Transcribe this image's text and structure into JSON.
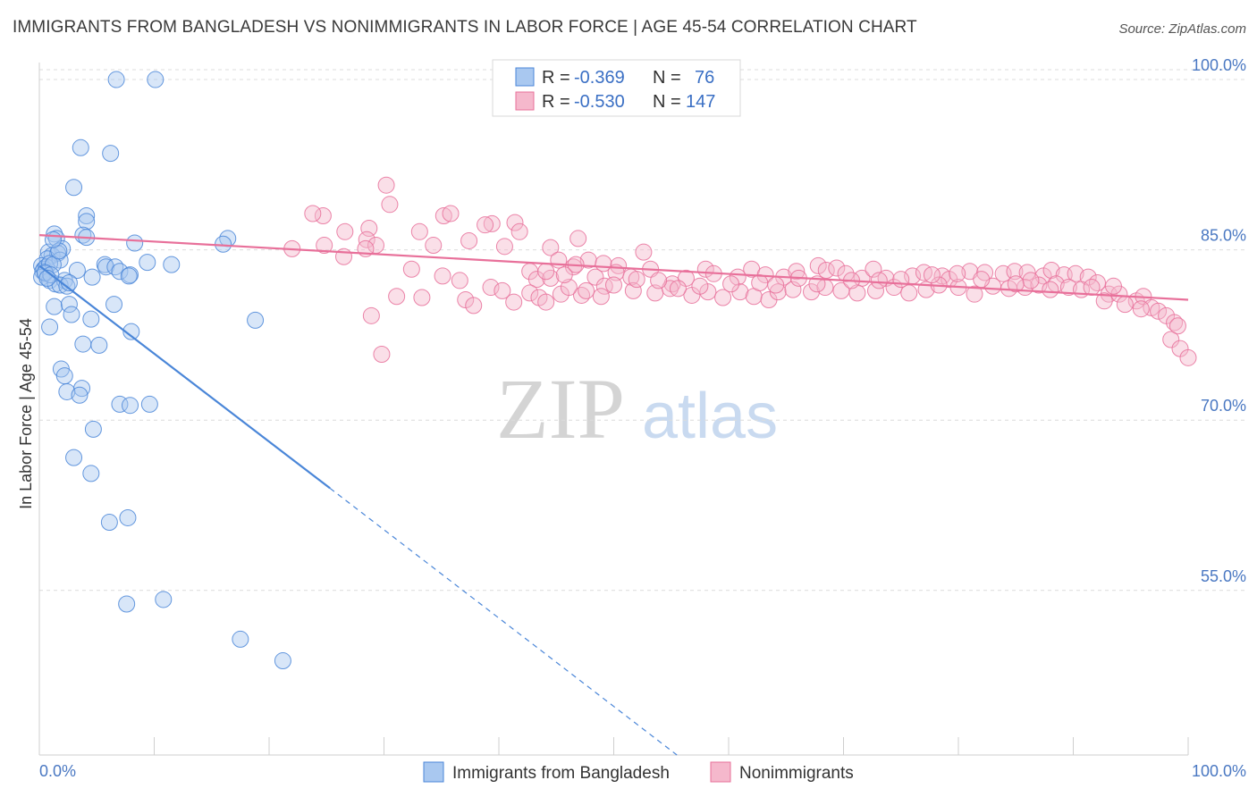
{
  "title": "IMMIGRANTS FROM BANGLADESH VS NONIMMIGRANTS IN LABOR FORCE | AGE 45-54 CORRELATION CHART",
  "source": "Source: ZipAtlas.com",
  "watermark": {
    "zip": "ZIP",
    "atlas": "atlas"
  },
  "colors": {
    "blue": "#4a86d8",
    "blue_fill": "#a9c8f0",
    "pink": "#e8709a",
    "pink_fill": "#f5b8cc",
    "axis_text": "#4a78c2"
  },
  "legend": {
    "rows": [
      {
        "r_label": "R =",
        "r_value": "-0.369",
        "n_label": "N =",
        "n_value": "76",
        "color": "blue"
      },
      {
        "r_label": "R =",
        "r_value": "-0.530",
        "n_label": "N =",
        "n_value": "147",
        "color": "pink"
      }
    ]
  },
  "bottom_legend": [
    {
      "label": "Immigrants from Bangladesh",
      "color": "blue"
    },
    {
      "label": "Nonimmigrants",
      "color": "pink"
    }
  ],
  "chart_data": {
    "type": "scatter",
    "title": "IMMIGRANTS FROM BANGLADESH VS NONIMMIGRANTS IN LABOR FORCE | AGE 45-54 CORRELATION CHART",
    "xlabel": "",
    "ylabel": "In Labor Force | Age 45-54",
    "xlim": [
      0,
      100
    ],
    "ylim": [
      40.5,
      101.5
    ],
    "x_tick_labels": [
      "0.0%",
      "100.0%"
    ],
    "y_ticks": [
      55,
      70,
      85,
      100
    ],
    "y_tick_labels": [
      "55.0%",
      "70.0%",
      "85.0%",
      "100.0%"
    ],
    "grid": true,
    "series": [
      {
        "name": "Immigrants from Bangladesh",
        "color": "blue",
        "trend": {
          "x0": 0,
          "y0": 83.6,
          "x1": 25.3,
          "y1": 64.0,
          "dash_to_x": 55.5,
          "dash_to_y": 40.5
        },
        "points": [
          [
            6.7,
            100.0
          ],
          [
            10.1,
            100.0
          ],
          [
            3.6,
            94.0
          ],
          [
            6.2,
            93.5
          ],
          [
            3.0,
            90.5
          ],
          [
            4.1,
            88.0
          ],
          [
            4.1,
            87.5
          ],
          [
            1.3,
            86.4
          ],
          [
            3.8,
            86.3
          ],
          [
            4.1,
            86.1
          ],
          [
            1.5,
            86.0
          ],
          [
            8.3,
            85.6
          ],
          [
            16.4,
            86.0
          ],
          [
            16.0,
            85.5
          ],
          [
            0.8,
            84.8
          ],
          [
            2.0,
            85.1
          ],
          [
            1.1,
            84.5
          ],
          [
            1.6,
            84.7
          ],
          [
            0.7,
            84.2
          ],
          [
            1.8,
            84.1
          ],
          [
            0.2,
            83.6
          ],
          [
            0.4,
            83.3
          ],
          [
            0.3,
            83.1
          ],
          [
            0.6,
            83.5
          ],
          [
            0.9,
            83.8
          ],
          [
            1.2,
            83.7
          ],
          [
            0.5,
            82.9
          ],
          [
            0.2,
            82.6
          ],
          [
            0.9,
            82.3
          ],
          [
            1.4,
            82.0
          ],
          [
            2.2,
            82.3
          ],
          [
            3.3,
            83.2
          ],
          [
            5.7,
            83.7
          ],
          [
            5.8,
            83.5
          ],
          [
            6.6,
            83.5
          ],
          [
            7.0,
            83.1
          ],
          [
            7.9,
            82.8
          ],
          [
            7.8,
            82.7
          ],
          [
            9.4,
            83.9
          ],
          [
            11.5,
            83.7
          ],
          [
            4.6,
            82.6
          ],
          [
            1.8,
            81.9
          ],
          [
            2.4,
            81.8
          ],
          [
            1.3,
            80.0
          ],
          [
            2.6,
            80.2
          ],
          [
            6.5,
            80.2
          ],
          [
            2.8,
            79.3
          ],
          [
            4.5,
            78.9
          ],
          [
            18.8,
            78.8
          ],
          [
            0.9,
            78.2
          ],
          [
            8.0,
            77.8
          ],
          [
            3.8,
            76.7
          ],
          [
            5.2,
            76.6
          ],
          [
            1.9,
            74.5
          ],
          [
            2.2,
            73.9
          ],
          [
            3.7,
            72.8
          ],
          [
            2.4,
            72.5
          ],
          [
            3.5,
            72.2
          ],
          [
            7.0,
            71.4
          ],
          [
            7.9,
            71.3
          ],
          [
            9.6,
            71.4
          ],
          [
            4.7,
            69.2
          ],
          [
            3.0,
            66.7
          ],
          [
            4.5,
            65.3
          ],
          [
            6.1,
            61.0
          ],
          [
            7.7,
            61.4
          ],
          [
            7.6,
            53.8
          ],
          [
            10.8,
            54.2
          ],
          [
            17.5,
            50.7
          ],
          [
            21.2,
            48.8
          ],
          [
            0.5,
            83.0
          ],
          [
            1.0,
            82.8
          ],
          [
            0.7,
            82.5
          ],
          [
            2.6,
            82.1
          ],
          [
            1.7,
            84.9
          ],
          [
            1.2,
            85.9
          ]
        ]
      },
      {
        "name": "Nonimmigrants",
        "color": "pink",
        "trend": {
          "x0": 0,
          "y0": 86.3,
          "x1": 100,
          "y1": 80.6
        },
        "points": [
          [
            30.2,
            90.7
          ],
          [
            30.5,
            89.0
          ],
          [
            24.7,
            88.0
          ],
          [
            23.8,
            88.2
          ],
          [
            35.2,
            88.0
          ],
          [
            35.8,
            88.2
          ],
          [
            39.4,
            87.3
          ],
          [
            38.8,
            87.2
          ],
          [
            41.4,
            87.4
          ],
          [
            26.6,
            86.6
          ],
          [
            28.7,
            86.9
          ],
          [
            33.1,
            86.6
          ],
          [
            37.4,
            85.8
          ],
          [
            41.8,
            86.6
          ],
          [
            46.9,
            86.0
          ],
          [
            22.0,
            85.1
          ],
          [
            24.8,
            85.4
          ],
          [
            28.5,
            85.9
          ],
          [
            29.3,
            85.4
          ],
          [
            34.3,
            85.4
          ],
          [
            40.5,
            85.3
          ],
          [
            44.5,
            85.2
          ],
          [
            52.6,
            84.8
          ],
          [
            47.8,
            84.1
          ],
          [
            50.4,
            83.6
          ],
          [
            49.1,
            83.8
          ],
          [
            45.2,
            84.1
          ],
          [
            46.5,
            83.5
          ],
          [
            26.5,
            84.4
          ],
          [
            28.4,
            85.1
          ],
          [
            42.7,
            83.1
          ],
          [
            32.4,
            83.3
          ],
          [
            35.1,
            82.7
          ],
          [
            43.3,
            82.4
          ],
          [
            44.5,
            82.5
          ],
          [
            48.4,
            82.6
          ],
          [
            50.2,
            83.0
          ],
          [
            51.5,
            82.6
          ],
          [
            53.2,
            83.3
          ],
          [
            55.1,
            82.0
          ],
          [
            56.3,
            82.5
          ],
          [
            58.0,
            83.3
          ],
          [
            58.7,
            82.9
          ],
          [
            60.8,
            82.6
          ],
          [
            62.0,
            83.3
          ],
          [
            63.2,
            82.8
          ],
          [
            64.8,
            82.6
          ],
          [
            65.9,
            83.1
          ],
          [
            67.8,
            83.6
          ],
          [
            68.5,
            83.2
          ],
          [
            69.4,
            83.4
          ],
          [
            70.2,
            82.9
          ],
          [
            71.6,
            82.5
          ],
          [
            72.6,
            83.3
          ],
          [
            73.7,
            82.5
          ],
          [
            76.0,
            82.7
          ],
          [
            77.0,
            83.0
          ],
          [
            78.6,
            82.7
          ],
          [
            79.2,
            82.4
          ],
          [
            81.0,
            83.1
          ],
          [
            82.3,
            83.0
          ],
          [
            83.9,
            82.9
          ],
          [
            84.9,
            83.1
          ],
          [
            86.0,
            83.0
          ],
          [
            87.4,
            82.7
          ],
          [
            88.1,
            83.2
          ],
          [
            89.2,
            82.8
          ],
          [
            90.2,
            82.9
          ],
          [
            91.3,
            82.6
          ],
          [
            92.1,
            82.1
          ],
          [
            39.3,
            81.7
          ],
          [
            42.7,
            81.2
          ],
          [
            43.5,
            80.8
          ],
          [
            45.4,
            81.1
          ],
          [
            47.2,
            81.0
          ],
          [
            49.2,
            81.8
          ],
          [
            50.0,
            81.9
          ],
          [
            51.7,
            81.4
          ],
          [
            53.6,
            81.2
          ],
          [
            54.9,
            81.6
          ],
          [
            56.8,
            81.0
          ],
          [
            58.2,
            81.3
          ],
          [
            59.5,
            80.8
          ],
          [
            61.0,
            81.3
          ],
          [
            62.2,
            80.9
          ],
          [
            63.5,
            80.6
          ],
          [
            64.3,
            81.3
          ],
          [
            65.6,
            81.5
          ],
          [
            67.2,
            81.3
          ],
          [
            68.4,
            81.7
          ],
          [
            69.8,
            81.4
          ],
          [
            71.2,
            81.2
          ],
          [
            72.8,
            81.4
          ],
          [
            74.4,
            81.7
          ],
          [
            75.7,
            81.2
          ],
          [
            77.2,
            81.5
          ],
          [
            78.3,
            81.9
          ],
          [
            80.0,
            81.7
          ],
          [
            81.4,
            81.1
          ],
          [
            83.0,
            81.8
          ],
          [
            84.4,
            81.6
          ],
          [
            85.8,
            81.7
          ],
          [
            87.0,
            81.9
          ],
          [
            88.5,
            82.0
          ],
          [
            89.6,
            81.7
          ],
          [
            90.7,
            81.5
          ],
          [
            91.6,
            81.7
          ],
          [
            93.1,
            81.1
          ],
          [
            94.0,
            81.1
          ],
          [
            95.5,
            80.5
          ],
          [
            96.1,
            80.9
          ],
          [
            96.8,
            79.9
          ],
          [
            97.4,
            79.6
          ],
          [
            98.1,
            79.2
          ],
          [
            98.8,
            78.6
          ],
          [
            99.1,
            78.3
          ],
          [
            98.5,
            77.1
          ],
          [
            99.3,
            76.3
          ],
          [
            100.0,
            75.5
          ],
          [
            92.7,
            80.5
          ],
          [
            95.9,
            79.8
          ],
          [
            94.5,
            80.2
          ],
          [
            93.5,
            81.8
          ],
          [
            88.0,
            81.5
          ],
          [
            86.3,
            82.3
          ],
          [
            85.0,
            82.0
          ],
          [
            82.0,
            82.4
          ],
          [
            79.9,
            82.9
          ],
          [
            77.7,
            82.8
          ],
          [
            75.0,
            82.4
          ],
          [
            73.1,
            82.3
          ],
          [
            70.7,
            82.3
          ],
          [
            67.7,
            82.0
          ],
          [
            66.1,
            82.5
          ],
          [
            64.1,
            81.9
          ],
          [
            62.7,
            82.1
          ],
          [
            60.2,
            82.0
          ],
          [
            57.5,
            81.8
          ],
          [
            55.6,
            81.6
          ],
          [
            53.9,
            82.3
          ],
          [
            52.0,
            82.4
          ],
          [
            48.9,
            80.9
          ],
          [
            47.6,
            81.4
          ],
          [
            46.1,
            81.7
          ],
          [
            44.1,
            80.4
          ],
          [
            41.3,
            80.4
          ],
          [
            37.1,
            80.6
          ],
          [
            36.6,
            82.3
          ],
          [
            33.3,
            80.8
          ],
          [
            31.1,
            80.9
          ],
          [
            28.9,
            79.2
          ],
          [
            29.8,
            75.8
          ],
          [
            37.8,
            80.1
          ],
          [
            40.3,
            81.4
          ],
          [
            44.1,
            83.1
          ],
          [
            45.7,
            82.8
          ],
          [
            46.7,
            83.7
          ]
        ]
      }
    ]
  }
}
